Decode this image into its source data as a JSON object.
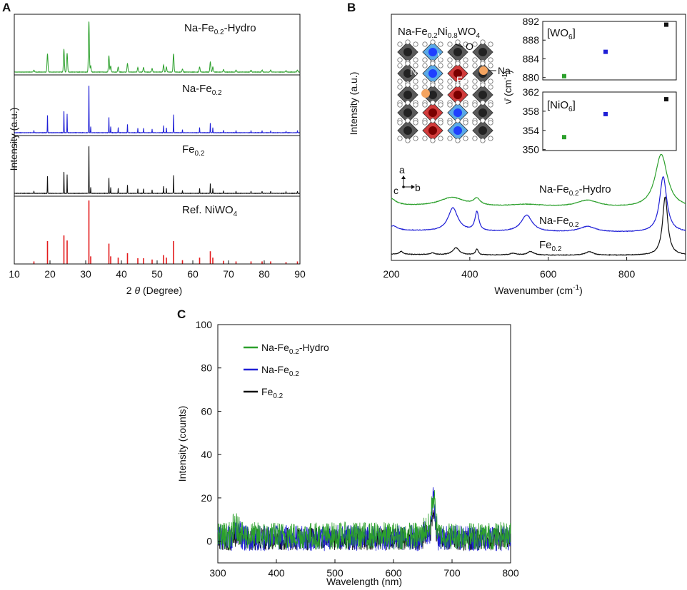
{
  "figure": {
    "panel_a": "A",
    "panel_b": "B",
    "panel_c": "C"
  },
  "chart_data": [
    {
      "panel": "A",
      "type": "line",
      "title": "",
      "xlabel": "2 θ (Degree)",
      "xlabel_prefix": "2 ",
      "xlabel_var": "θ",
      "xlabel_suffix": " (Degree)",
      "ylabel": "Intensity (a.u.)",
      "xlim": [
        10,
        90
      ],
      "xticks": [
        10,
        20,
        30,
        40,
        50,
        60,
        70,
        80,
        90
      ],
      "peaks": [
        15.5,
        19.3,
        23.9,
        24.8,
        30.9,
        31.4,
        36.5,
        37.0,
        39.1,
        41.7,
        44.6,
        46.2,
        48.6,
        51.8,
        52.6,
        54.6,
        57.1,
        61.9,
        64.9,
        65.6,
        68.6,
        72.1,
        76.3,
        79.4,
        81.8,
        86.1,
        89.3
      ],
      "peak_heights": [
        0.04,
        0.36,
        0.45,
        0.37,
        1.0,
        0.12,
        0.32,
        0.12,
        0.1,
        0.17,
        0.09,
        0.09,
        0.07,
        0.14,
        0.1,
        0.36,
        0.06,
        0.1,
        0.2,
        0.1,
        0.05,
        0.04,
        0.04,
        0.04,
        0.04,
        0.03,
        0.04
      ],
      "series": [
        {
          "name": "Na-Fe0.2-Hydro",
          "label_main": "Na-Fe",
          "label_sub": "0.2",
          "label_tail": "-Hydro",
          "color": "#2ca02c",
          "style": "broad"
        },
        {
          "name": "Na-Fe0.2",
          "label_main": "Na-Fe",
          "label_sub": "0.2",
          "label_tail": "",
          "color": "#1f1fd6",
          "style": "sharp"
        },
        {
          "name": "Fe0.2",
          "label_main": "Fe",
          "label_sub": "0.2",
          "label_tail": "",
          "color": "#111111",
          "style": "sharp"
        },
        {
          "name": "Ref. NiWO4",
          "label_main": "Ref. NiWO",
          "label_sub": "4",
          "label_tail": "",
          "color": "#e31a1c",
          "style": "sticks"
        }
      ]
    },
    {
      "panel": "B",
      "type": "line",
      "xlabel": "Wavenumber (cm⁻¹)",
      "xlabel_main": "Wavenumber (cm",
      "xlabel_sup": "-1",
      "xlabel_tail": ")",
      "ylabel": "Intensity (a.u.)",
      "xlim": [
        200,
        950
      ],
      "xticks": [
        200,
        400,
        600,
        800
      ],
      "series": [
        {
          "name": "Na-Fe0.2-Hydro",
          "label_main": "Na-Fe",
          "label_sub": "0.2",
          "label_tail": "-Hydro",
          "color": "#2ca02c",
          "baseline": 0.05,
          "peaks": [
            [
              200,
              0.12,
              14
            ],
            [
              355,
              0.17,
              40
            ],
            [
              418,
              0.12,
              10
            ],
            [
              545,
              0.05,
              60
            ],
            [
              700,
              0.13,
              35
            ],
            [
              888,
              1.0,
              19
            ]
          ]
        },
        {
          "name": "Na-Fe0.2",
          "label_main": "Na-Fe",
          "label_sub": "0.2",
          "label_tail": "",
          "color": "#1f1fd6",
          "baseline": 0.04,
          "peaks": [
            [
              205,
              0.08,
              12
            ],
            [
              357,
              0.42,
              15
            ],
            [
              418,
              0.34,
              6
            ],
            [
              545,
              0.3,
              17
            ],
            [
              700,
              0.1,
              25
            ],
            [
              893,
              1.0,
              11
            ]
          ]
        },
        {
          "name": "Fe0.2",
          "label_main": "Fe",
          "label_sub": "0.2",
          "label_tail": "",
          "color": "#111111",
          "baseline": 0.02,
          "peaks": [
            [
              225,
              0.05,
              6
            ],
            [
              305,
              0.03,
              6
            ],
            [
              365,
              0.12,
              10
            ],
            [
              418,
              0.1,
              4
            ],
            [
              510,
              0.03,
              10
            ],
            [
              555,
              0.06,
              10
            ],
            [
              705,
              0.06,
              12
            ],
            [
              898,
              1.0,
              8
            ]
          ]
        }
      ],
      "structure_inset": {
        "formula_parts": [
          "Na-Fe",
          "0.2",
          "Ni",
          "0.8",
          "WO",
          "4"
        ],
        "label_O": "O",
        "label_W": "W",
        "label_Ni": "Ni",
        "label_Fe": "Fe",
        "label_Na": "Na",
        "axis_a": "a",
        "axis_b": "b",
        "axis_c": "c"
      },
      "inset_plots": {
        "ylabel": "ν̄ (cm⁻¹)",
        "ylabel_main": "ν̄ (cm",
        "ylabel_sup": "-1",
        "ylabel_tail": ")",
        "top": {
          "label_main": "[WO",
          "label_sub": "6",
          "label_tail": "]",
          "yticks": [
            880,
            884,
            888,
            892
          ],
          "ylim": [
            879.5,
            892
          ],
          "points": [
            {
              "value": 880.3,
              "color": "#2ca02c"
            },
            {
              "value": 885.5,
              "color": "#1f1fd6"
            },
            {
              "value": 891.3,
              "color": "#111111"
            }
          ]
        },
        "bottom": {
          "label_main": "[NiO",
          "label_sub": "6",
          "label_tail": "]",
          "yticks": [
            350,
            354,
            358,
            362
          ],
          "ylim": [
            349.8,
            362
          ],
          "points": [
            {
              "value": 352.6,
              "color": "#2ca02c"
            },
            {
              "value": 357.4,
              "color": "#1f1fd6"
            },
            {
              "value": 360.5,
              "color": "#111111"
            }
          ]
        }
      }
    },
    {
      "panel": "C",
      "type": "line",
      "xlabel": "Wavelength (nm)",
      "ylabel": "Intensity (counts)",
      "xlim": [
        300,
        800
      ],
      "ylim": [
        -10,
        100
      ],
      "xticks": [
        300,
        400,
        500,
        600,
        700,
        800
      ],
      "yticks": [
        0,
        20,
        40,
        60,
        80,
        100
      ],
      "legend": "top-left",
      "series": [
        {
          "name": "Na-Fe0.2-Hydro",
          "label_main": "Na-Fe",
          "label_sub": "0.2",
          "label_tail": "-Hydro",
          "color": "#2ca02c",
          "noise": 3.2,
          "base": 2.5,
          "peak": [
            668,
            18,
            5
          ]
        },
        {
          "name": "Na-Fe0.2",
          "label_main": "Na-Fe",
          "label_sub": "0.2",
          "label_tail": "",
          "color": "#1f1fd6",
          "noise": 3.0,
          "base": 1.5,
          "peak": [
            668,
            20,
            4
          ]
        },
        {
          "name": "Fe0.2",
          "label_main": "Fe",
          "label_sub": "0.2",
          "label_tail": "",
          "color": "#111111",
          "noise": 2.6,
          "base": 1.0,
          "peak": [
            668,
            14,
            4
          ]
        }
      ]
    }
  ]
}
